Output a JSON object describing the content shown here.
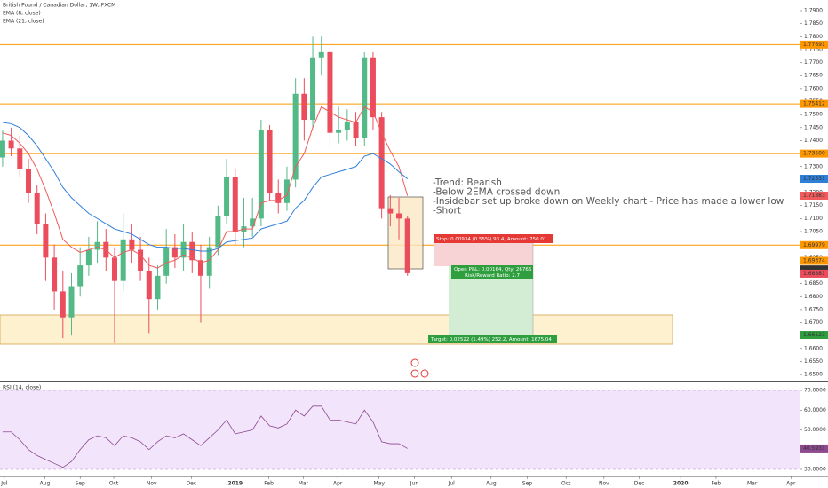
{
  "chart_data": [
    {
      "type": "candlestick",
      "title": "British Pound / Canadian Dollar, 1W, FXCM",
      "x": [
        0,
        1,
        2,
        3,
        4,
        5,
        6,
        7,
        8,
        9,
        10,
        11,
        12,
        13,
        14,
        15,
        16,
        17,
        18,
        19,
        20,
        21,
        22,
        23,
        24,
        25,
        26,
        27,
        28,
        29,
        30,
        31,
        32,
        33,
        34,
        35,
        36,
        37,
        38,
        39,
        40,
        41,
        42,
        43,
        44,
        45,
        46,
        47
      ],
      "open": [
        1.7335,
        1.74,
        1.737,
        1.729,
        1.72,
        1.708,
        1.695,
        1.682,
        1.672,
        1.684,
        1.692,
        1.698,
        1.701,
        1.695,
        1.686,
        1.702,
        1.698,
        1.69,
        1.679,
        1.688,
        1.699,
        1.695,
        1.701,
        1.694,
        1.688,
        1.699,
        1.711,
        1.726,
        1.705,
        1.707,
        1.71,
        1.744,
        1.72,
        1.716,
        1.725,
        1.758,
        1.748,
        1.772,
        1.774,
        1.743,
        1.744,
        1.747,
        1.741,
        1.772,
        1.749,
        1.714,
        1.712,
        1.71
      ],
      "high": [
        1.744,
        1.745,
        1.742,
        1.733,
        1.723,
        1.712,
        1.7,
        1.69,
        1.689,
        1.699,
        1.703,
        1.709,
        1.706,
        1.699,
        1.712,
        1.708,
        1.703,
        1.695,
        1.692,
        1.706,
        1.704,
        1.708,
        1.705,
        1.7,
        1.703,
        1.715,
        1.733,
        1.729,
        1.718,
        1.718,
        1.748,
        1.746,
        1.725,
        1.73,
        1.764,
        1.764,
        1.78,
        1.78,
        1.776,
        1.753,
        1.752,
        1.751,
        1.774,
        1.774,
        1.751,
        1.719,
        1.718,
        1.711
      ],
      "low": [
        1.73,
        1.734,
        1.726,
        1.716,
        1.704,
        1.686,
        1.675,
        1.664,
        1.665,
        1.68,
        1.688,
        1.693,
        1.69,
        1.662,
        1.682,
        1.693,
        1.686,
        1.666,
        1.675,
        1.685,
        1.691,
        1.69,
        1.689,
        1.67,
        1.683,
        1.696,
        1.708,
        1.7,
        1.699,
        1.703,
        1.707,
        1.717,
        1.712,
        1.713,
        1.722,
        1.74,
        1.745,
        1.765,
        1.738,
        1.739,
        1.74,
        1.738,
        1.738,
        1.744,
        1.71,
        1.707,
        1.702,
        1.688
      ],
      "close": [
        1.74,
        1.737,
        1.729,
        1.72,
        1.708,
        1.695,
        1.682,
        1.672,
        1.684,
        1.692,
        1.698,
        1.701,
        1.695,
        1.686,
        1.702,
        1.698,
        1.69,
        1.679,
        1.688,
        1.699,
        1.695,
        1.701,
        1.694,
        1.688,
        1.699,
        1.711,
        1.726,
        1.705,
        1.707,
        1.71,
        1.744,
        1.72,
        1.716,
        1.725,
        1.758,
        1.748,
        1.772,
        1.774,
        1.743,
        1.744,
        1.747,
        1.741,
        1.772,
        1.749,
        1.714,
        1.712,
        1.71,
        1.689
      ],
      "up_color": "#53b987",
      "down_color": "#eb4d5c",
      "overlays": [
        {
          "name": "EMA (8, close)",
          "color": "#f05a5a",
          "values": [
            1.743,
            1.742,
            1.739,
            1.735,
            1.729,
            1.721,
            1.712,
            1.702,
            1.699,
            1.697,
            1.698,
            1.699,
            1.698,
            1.695,
            1.697,
            1.698,
            1.696,
            1.692,
            1.691,
            1.693,
            1.694,
            1.696,
            1.695,
            1.693,
            1.694,
            1.698,
            1.705,
            1.705,
            1.706,
            1.706,
            1.716,
            1.717,
            1.717,
            1.719,
            1.73,
            1.735,
            1.745,
            1.753,
            1.751,
            1.749,
            1.748,
            1.747,
            1.753,
            1.751,
            1.743,
            1.736,
            1.73,
            1.7188
          ]
        },
        {
          "name": "EMA (21, close)",
          "color": "#2f7fd8",
          "values": [
            1.747,
            1.7465,
            1.745,
            1.742,
            1.738,
            1.733,
            1.728,
            1.722,
            1.718,
            1.715,
            1.712,
            1.71,
            1.708,
            1.706,
            1.705,
            1.704,
            1.702,
            1.7,
            1.699,
            1.699,
            1.6985,
            1.6985,
            1.698,
            1.6975,
            1.6975,
            1.6985,
            1.701,
            1.7015,
            1.702,
            1.7025,
            1.706,
            1.707,
            1.708,
            1.709,
            1.714,
            1.717,
            1.722,
            1.726,
            1.727,
            1.728,
            1.729,
            1.73,
            1.734,
            1.735,
            1.733,
            1.731,
            1.728,
            1.7253
          ]
        }
      ],
      "xlim": [
        -0.3,
        92.5
      ],
      "xticks": [
        {
          "value": 0.2,
          "label": "Jul"
        },
        {
          "value": 4.9,
          "label": "Aug"
        },
        {
          "value": 9.0,
          "label": "Sep"
        },
        {
          "value": 12.9,
          "label": "Oct"
        },
        {
          "value": 17.3,
          "label": "Nov"
        },
        {
          "value": 21.9,
          "label": "Dec"
        },
        {
          "value": 27.0,
          "label": "2019"
        },
        {
          "value": 30.9,
          "label": "Feb"
        },
        {
          "value": 34.9,
          "label": "Mar"
        },
        {
          "value": 38.9,
          "label": "Apr"
        },
        {
          "value": 43.7,
          "label": "May"
        },
        {
          "value": 47.8,
          "label": "Jun"
        },
        {
          "value": 52.1,
          "label": "Jul"
        },
        {
          "value": 56.7,
          "label": "Aug"
        },
        {
          "value": 60.9,
          "label": "Sep"
        },
        {
          "value": 65.4,
          "label": "Oct"
        },
        {
          "value": 69.8,
          "label": "Nov"
        },
        {
          "value": 73.9,
          "label": "Dec"
        },
        {
          "value": 78.7,
          "label": "2020"
        },
        {
          "value": 82.8,
          "label": "Feb"
        },
        {
          "value": 87.0,
          "label": "Mar"
        },
        {
          "value": 91.5,
          "label": "Apr"
        }
      ],
      "ylim": [
        1.648,
        1.7941
      ],
      "yticks": [
        {
          "value": 1.79,
          "label": "1.7900"
        },
        {
          "value": 1.785,
          "label": "1.7850"
        },
        {
          "value": 1.78,
          "label": "1.7800"
        },
        {
          "value": 1.775,
          "label": "1.7750"
        },
        {
          "value": 1.77,
          "label": "1.7700"
        },
        {
          "value": 1.765,
          "label": "1.7650"
        },
        {
          "value": 1.76,
          "label": "1.7600"
        },
        {
          "value": 1.755,
          "label": "1.7550"
        },
        {
          "value": 1.75,
          "label": "1.7500"
        },
        {
          "value": 1.745,
          "label": "1.7450"
        },
        {
          "value": 1.74,
          "label": "1.7400"
        },
        {
          "value": 1.735,
          "label": "1.7350"
        },
        {
          "value": 1.73,
          "label": "1.7300"
        },
        {
          "value": 1.725,
          "label": "1.7250"
        },
        {
          "value": 1.72,
          "label": "1.7200"
        },
        {
          "value": 1.715,
          "label": "1.7150"
        },
        {
          "value": 1.71,
          "label": "1.7100"
        },
        {
          "value": 1.705,
          "label": "1.7050"
        },
        {
          "value": 1.7,
          "label": "1.7000"
        },
        {
          "value": 1.695,
          "label": "1.6950"
        },
        {
          "value": 1.69,
          "label": "1.6900"
        },
        {
          "value": 1.685,
          "label": "1.6850"
        },
        {
          "value": 1.68,
          "label": "1.6800"
        },
        {
          "value": 1.675,
          "label": "1.6750"
        },
        {
          "value": 1.67,
          "label": "1.6700"
        },
        {
          "value": 1.665,
          "label": "1.6650"
        },
        {
          "value": 1.66,
          "label": "1.6600"
        },
        {
          "value": 1.655,
          "label": "1.6550"
        },
        {
          "value": 1.65,
          "label": "1.6500"
        }
      ],
      "price_labels": [
        {
          "value": 1.77691,
          "label": "1.77691",
          "color": "#ff9800",
          "hline": true
        },
        {
          "value": 1.75412,
          "label": "1.75412",
          "color": "#ff9800",
          "hline": true
        },
        {
          "value": 1.735,
          "label": "1.73500",
          "color": "#ff9800",
          "hline": true
        },
        {
          "value": 1.72531,
          "label": "1.72531",
          "color": "#2f7fd8",
          "hline": false
        },
        {
          "value": 1.71883,
          "label": "1.71883",
          "color": "#f05a5a",
          "hline": false
        },
        {
          "value": 1.69979,
          "label": "1.69979",
          "color": "#ff9800",
          "hline": true
        },
        {
          "value": 1.69374,
          "label": "1.69374",
          "color": "#ff9800",
          "hline": false
        },
        {
          "value": 1.69045,
          "label": "1.69045",
          "color": "#333333",
          "hline": false
        },
        {
          "value": 1.68881,
          "label": "1.68881",
          "color": "#eb4d5c",
          "hline": false
        },
        {
          "value": 1.66523,
          "label": "1.66523",
          "color": "#2e9e3e",
          "hline": false
        }
      ],
      "annotations": [
        "-Trend: Bearish",
        "-Below 2EMA crossed down",
        "-Insidebar set up broke down on Weekly chart - Price has made a lower low",
        "-Short"
      ],
      "position": {
        "stop": "Stop: 0.00934 (0.55%) 93.4, Amount: 750.01",
        "open": "Open P&L: 0.00164, Qty: 26766",
        "ratio": "Risk/Reward Ratio: 2.7",
        "target": "Target: 0.02522 (1.49%) 252.2, Amount: 1675.04"
      }
    },
    {
      "type": "line",
      "name": "RSI (14, close)",
      "color": "#8e4a8e",
      "x": [
        0,
        1,
        2,
        3,
        4,
        5,
        6,
        7,
        8,
        9,
        10,
        11,
        12,
        13,
        14,
        15,
        16,
        17,
        18,
        19,
        20,
        21,
        22,
        23,
        24,
        25,
        26,
        27,
        28,
        29,
        30,
        31,
        32,
        33,
        34,
        35,
        36,
        37,
        38,
        39,
        40,
        41,
        42,
        43,
        44,
        45,
        46,
        47
      ],
      "values": [
        49,
        49,
        45,
        40,
        37,
        35,
        33,
        31,
        34,
        40,
        45,
        47,
        46,
        42,
        47,
        46,
        44,
        40,
        44,
        47,
        46,
        48,
        45,
        42,
        46,
        50,
        55,
        48,
        49,
        50,
        57,
        52,
        51,
        53,
        60,
        57,
        62,
        62,
        55,
        55,
        54,
        53,
        60,
        54,
        44,
        43,
        43,
        40.5931
      ],
      "value_labels": {
        "47": "40.5931"
      },
      "xlim": [
        -0.3,
        92.5
      ],
      "ylim": [
        27.3,
        73.6
      ],
      "band": [
        30,
        70
      ],
      "yticks": [
        {
          "value": 70,
          "label": "70.0000"
        },
        {
          "value": 60,
          "label": "60.0000"
        },
        {
          "value": 50,
          "label": "50.0000"
        },
        {
          "value": 40,
          "label": "40.0000"
        },
        {
          "value": 30,
          "label": "30.0000"
        }
      ]
    }
  ]
}
